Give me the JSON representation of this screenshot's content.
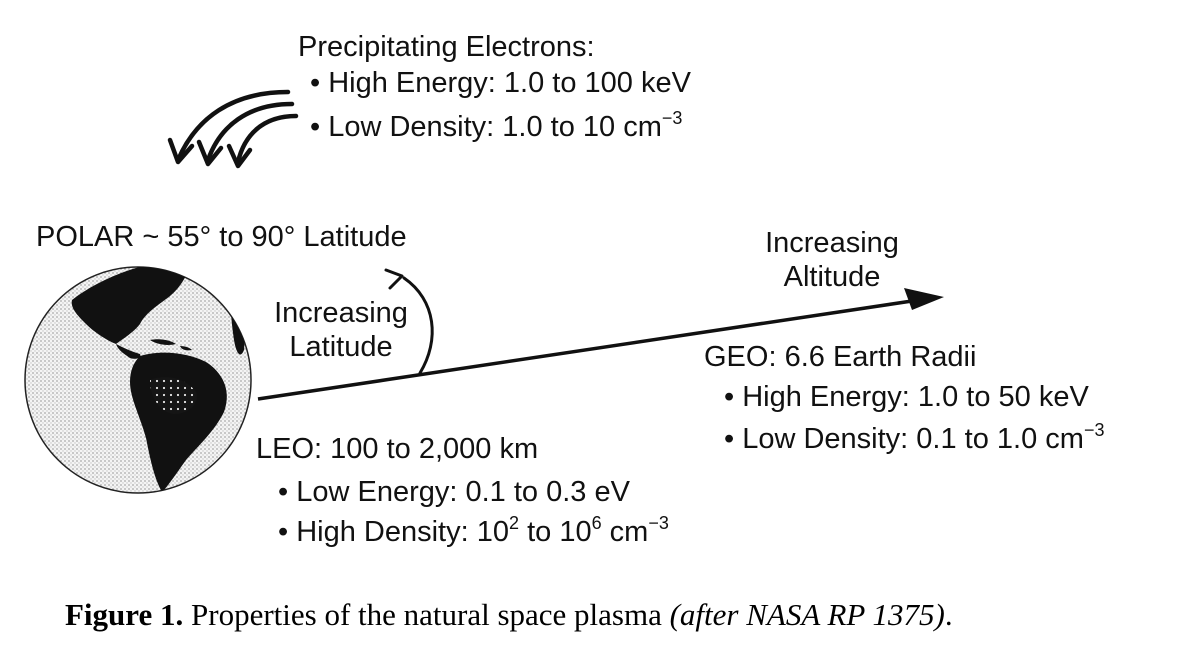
{
  "precipitating": {
    "title": "Precipitating Electrons:",
    "energy": "High Energy: 1.0 to 100 keV",
    "density": "Low Density: 1.0 to 10 cm",
    "density_exp": "−3"
  },
  "polar": {
    "label": "POLAR ~ 55° to 90° Latitude"
  },
  "latitude": {
    "line1": "Increasing",
    "line2": "Latitude"
  },
  "altitude": {
    "line1": "Increasing",
    "line2": "Altitude"
  },
  "geo": {
    "title": "GEO: 6.6 Earth Radii",
    "energy": "High Energy: 1.0 to 50 keV",
    "density": "Low Density: 0.1 to 1.0 cm",
    "density_exp": "−3"
  },
  "leo": {
    "title": "LEO: 100 to 2,000 km",
    "energy": "Low Energy: 0.1 to 0.3 eV",
    "density_a": "High Density: 10",
    "exp_a": "2",
    "density_b": " to 10",
    "exp_b": "6",
    "density_c": " cm",
    "exp_c": "−3"
  },
  "bullet": "•",
  "caption": {
    "label": "Figure 1.",
    "text": " Properties of the natural space plasma ",
    "italic": "(after NASA RP 1375)",
    "end": "."
  }
}
